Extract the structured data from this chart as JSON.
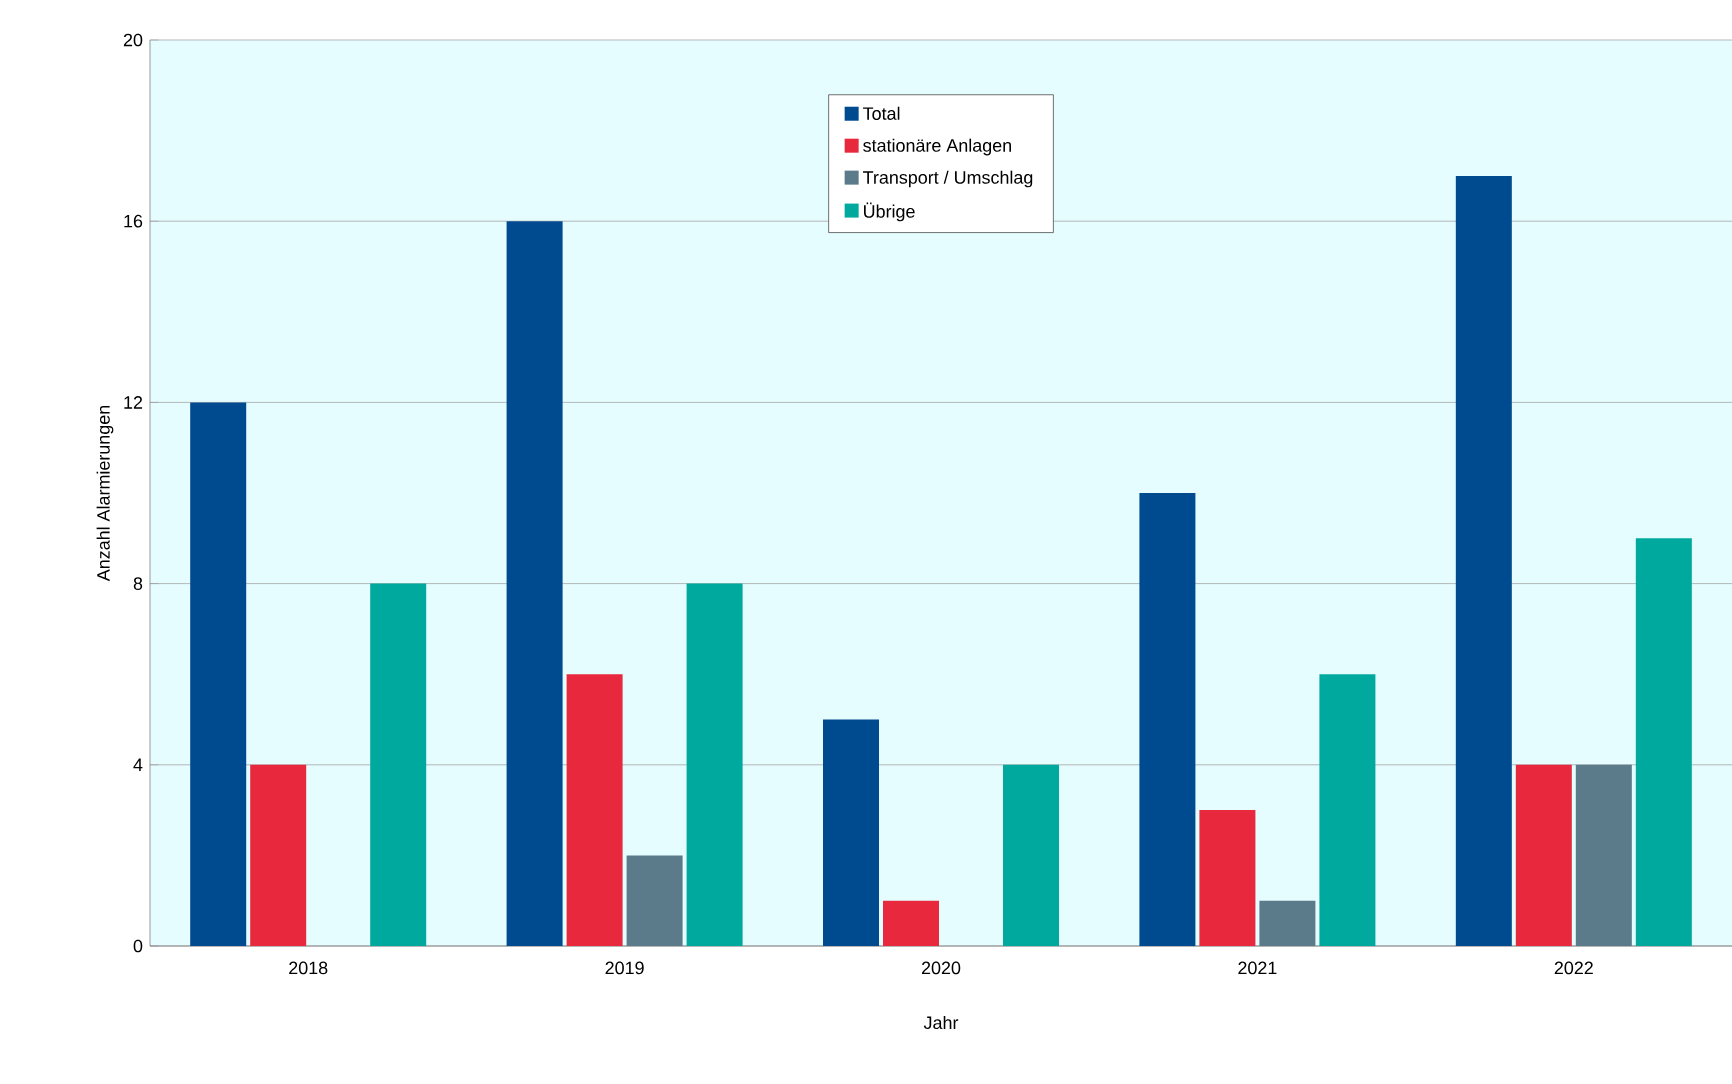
{
  "chart_data": {
    "type": "bar",
    "xlabel": "Jahr",
    "ylabel": "Anzahl Alarmierungen",
    "categories": [
      "2018",
      "2019",
      "2020",
      "2021",
      "2022"
    ],
    "series": [
      {
        "name": "Total",
        "color": "#004a8f",
        "values": [
          12,
          16,
          5,
          10,
          17
        ]
      },
      {
        "name": "stationäre Anlagen",
        "color": "#e8283c",
        "values": [
          4,
          6,
          1,
          3,
          4
        ]
      },
      {
        "name": "Transport / Umschlag",
        "color": "#5b7a8a",
        "values": [
          0,
          2,
          0,
          1,
          4
        ]
      },
      {
        "name": "Übrige",
        "color": "#00a99d",
        "values": [
          8,
          8,
          4,
          6,
          9
        ]
      }
    ],
    "ylim": [
      0,
      20
    ],
    "yticks": [
      0,
      4,
      8,
      12,
      16,
      20
    ],
    "grid": "y",
    "legend": "top"
  }
}
